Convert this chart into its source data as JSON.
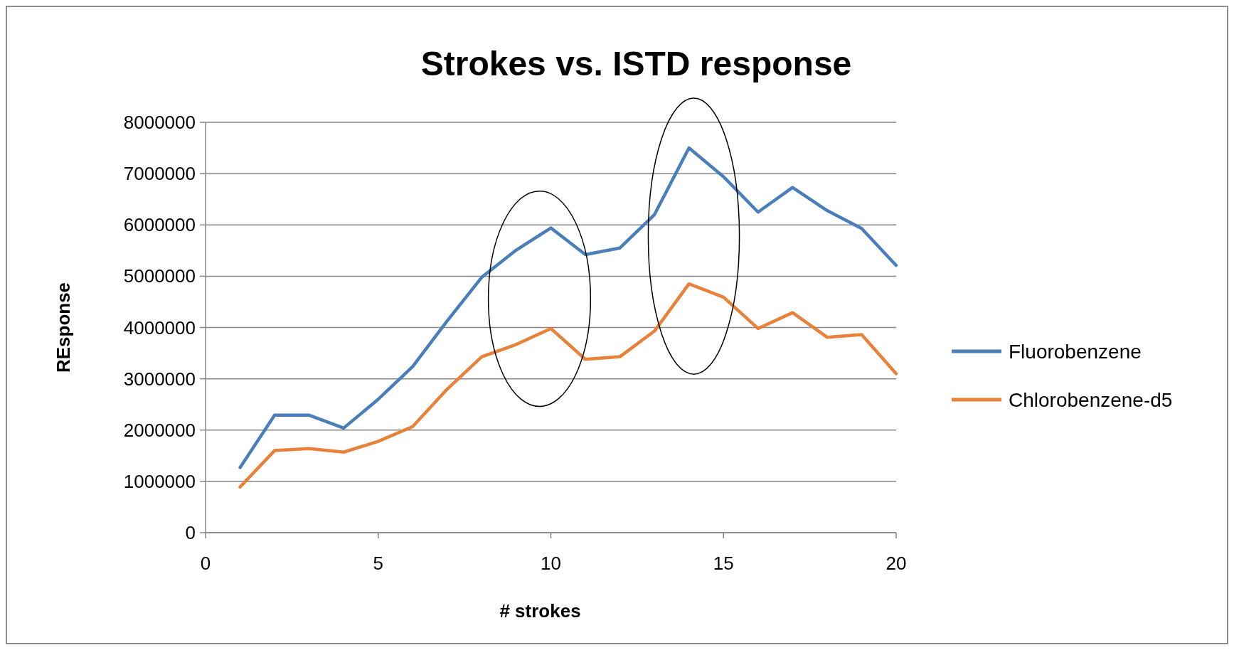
{
  "chart_data": {
    "type": "line",
    "title": "Strokes vs. ISTD response",
    "xlabel": "# strokes",
    "ylabel": "REsponse",
    "x": [
      1,
      2,
      3,
      4,
      5,
      6,
      7,
      8,
      9,
      10,
      11,
      12,
      13,
      14,
      15,
      16,
      17,
      18,
      19,
      20
    ],
    "series": [
      {
        "name": "Fluorobenzene",
        "color": "#4a7ebb",
        "values": [
          1270000,
          2290000,
          2290000,
          2040000,
          2600000,
          3240000,
          4130000,
          4980000,
          5510000,
          5940000,
          5420000,
          5550000,
          6200000,
          7500000,
          6940000,
          6250000,
          6730000,
          6280000,
          5930000,
          5210000
        ]
      },
      {
        "name": "Chlorobenzene-d5",
        "color": "#e8813a",
        "values": [
          890000,
          1600000,
          1640000,
          1570000,
          1780000,
          2070000,
          2800000,
          3430000,
          3670000,
          3980000,
          3380000,
          3430000,
          3930000,
          4850000,
          4590000,
          3980000,
          4290000,
          3810000,
          3860000,
          3100000
        ]
      }
    ],
    "xlim": [
      0,
      20
    ],
    "xticks": [
      0,
      5,
      10,
      15,
      20
    ],
    "ylim": [
      0,
      8000000
    ],
    "yticks": [
      0,
      1000000,
      2000000,
      3000000,
      4000000,
      5000000,
      6000000,
      7000000,
      8000000
    ],
    "grid": "y",
    "legend": "right",
    "marker": "none",
    "line_style": "solid"
  }
}
